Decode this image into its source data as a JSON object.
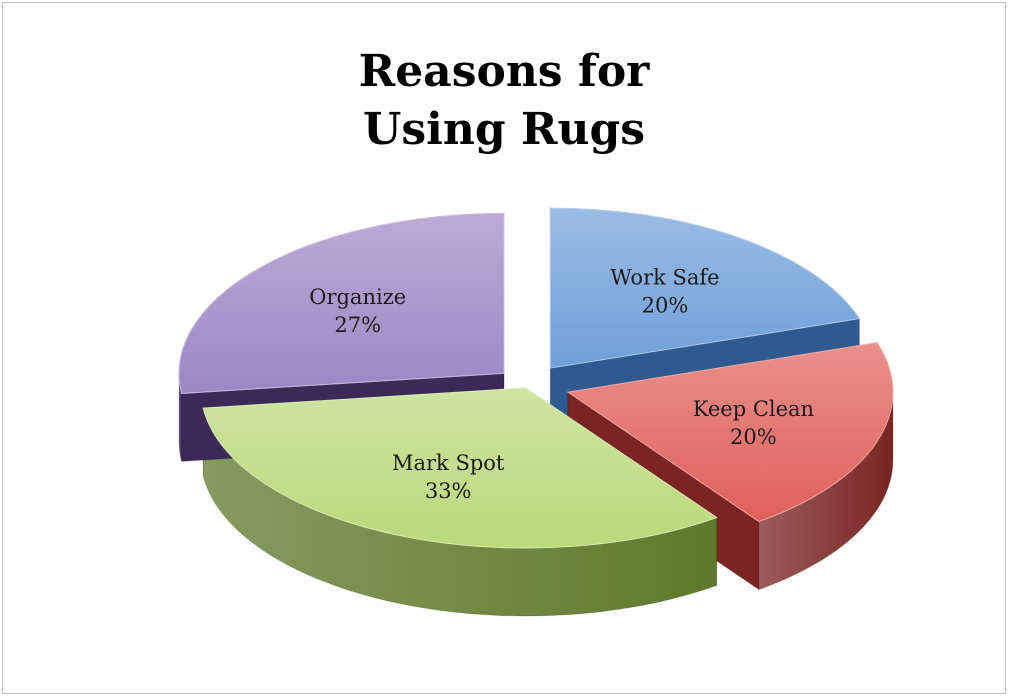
{
  "chart_data": {
    "type": "pie",
    "title_lines": [
      "Reasons for",
      "Using Rugs"
    ],
    "slices": [
      {
        "category": "Work Safe",
        "value": 20,
        "label": "20%",
        "color": "#6f9fd8",
        "side": "#2f5a8f"
      },
      {
        "category": "Keep Clean",
        "value": 20,
        "label": "20%",
        "color": "#e0605c",
        "side": "#7a2523"
      },
      {
        "category": "Mark Spot",
        "value": 33,
        "label": "33%",
        "color": "#b9d97a",
        "side": "#5f7a2b"
      },
      {
        "category": "Organize",
        "value": 27,
        "label": "27%",
        "color": "#9c87c4",
        "side": "#3b2a57"
      }
    ],
    "legend": "none",
    "style": "3d-exploded"
  }
}
